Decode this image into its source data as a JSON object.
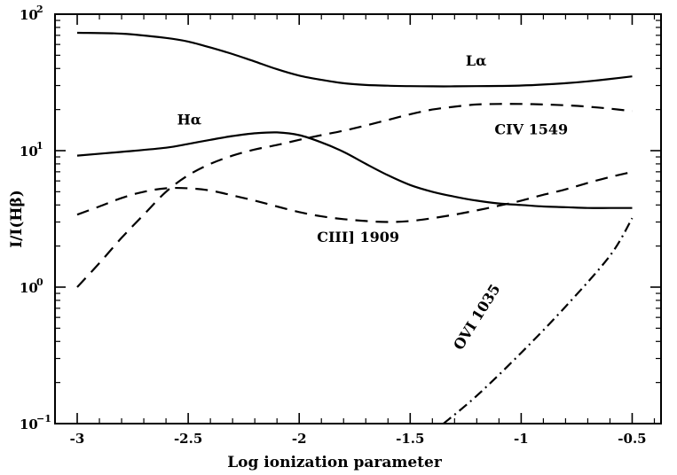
{
  "chart_data": {
    "type": "line",
    "title": "",
    "xlabel": "Log ionization parameter",
    "ylabel": "I/I(Hβ)",
    "xlim": [
      -3.1,
      -0.37
    ],
    "ylim": [
      0.1,
      100
    ],
    "y_scale": "log",
    "grid": false,
    "x_ticks": [
      {
        "value": -3,
        "label": "-3"
      },
      {
        "value": -2.5,
        "label": "-2.5"
      },
      {
        "value": -2,
        "label": "-2"
      },
      {
        "value": -1.5,
        "label": "-1.5"
      },
      {
        "value": -1,
        "label": "-1"
      },
      {
        "value": -0.5,
        "label": "-0.5"
      }
    ],
    "y_ticks": [
      {
        "value": 100,
        "base": "10",
        "exp": "2"
      },
      {
        "value": 10,
        "base": "10",
        "exp": "1"
      },
      {
        "value": 1,
        "base": "10",
        "exp": "0"
      },
      {
        "value": 0.1,
        "base": "10",
        "exp": "−1"
      }
    ],
    "series": [
      {
        "name": "Lα",
        "style": "solid",
        "label_at": {
          "x": -1.25,
          "y": 42
        },
        "x": [
          -3.0,
          -2.8,
          -2.6,
          -2.5,
          -2.4,
          -2.3,
          -2.2,
          -2.1,
          -2.0,
          -1.9,
          -1.8,
          -1.7,
          -1.6,
          -1.5,
          -1.4,
          -1.3,
          -1.2,
          -1.1,
          -1.0,
          -0.9,
          -0.8,
          -0.7,
          -0.6,
          -0.5
        ],
        "y": [
          73,
          72,
          67,
          63,
          57,
          51,
          45,
          39.5,
          35.5,
          33,
          31.2,
          30.3,
          29.9,
          29.7,
          29.6,
          29.6,
          29.7,
          29.8,
          30,
          30.5,
          31.2,
          32.2,
          33.5,
          35
        ]
      },
      {
        "name": "Hα",
        "style": "solid",
        "label_at": {
          "x": -2.55,
          "y": 15.5
        },
        "x": [
          -3.0,
          -2.8,
          -2.6,
          -2.5,
          -2.4,
          -2.3,
          -2.2,
          -2.1,
          -2.0,
          -1.9,
          -1.8,
          -1.7,
          -1.6,
          -1.5,
          -1.4,
          -1.3,
          -1.2,
          -1.1,
          -1.0,
          -0.9,
          -0.8,
          -0.7,
          -0.6,
          -0.5
        ],
        "y": [
          9.2,
          9.8,
          10.5,
          11.2,
          12.0,
          12.8,
          13.4,
          13.6,
          13.0,
          11.5,
          9.8,
          8.0,
          6.6,
          5.6,
          5.0,
          4.6,
          4.3,
          4.1,
          4.0,
          3.9,
          3.85,
          3.8,
          3.8,
          3.8
        ]
      },
      {
        "name": "CIV 1549",
        "style": "dash",
        "label_at": {
          "x": -1.12,
          "y": 13.2
        },
        "x": [
          -3.0,
          -2.9,
          -2.8,
          -2.7,
          -2.6,
          -2.5,
          -2.4,
          -2.3,
          -2.2,
          -2.1,
          -2.0,
          -1.9,
          -1.8,
          -1.7,
          -1.6,
          -1.5,
          -1.4,
          -1.3,
          -1.2,
          -1.1,
          -1.0,
          -0.9,
          -0.8,
          -0.7,
          -0.6,
          -0.5
        ],
        "y": [
          1.0,
          1.5,
          2.3,
          3.4,
          5.0,
          6.6,
          8.0,
          9.2,
          10.2,
          11.0,
          12.0,
          13.0,
          14.0,
          15.3,
          16.8,
          18.5,
          20.0,
          21.0,
          21.8,
          22.0,
          22.0,
          21.8,
          21.5,
          21.0,
          20.3,
          19.5
        ]
      },
      {
        "name": "CIII] 1909",
        "style": "dash",
        "label_at": {
          "x": -1.92,
          "y": 2.15
        },
        "x": [
          -3.0,
          -2.9,
          -2.8,
          -2.7,
          -2.6,
          -2.5,
          -2.4,
          -2.3,
          -2.2,
          -2.1,
          -2.0,
          -1.9,
          -1.8,
          -1.7,
          -1.6,
          -1.5,
          -1.4,
          -1.3,
          -1.2,
          -1.1,
          -1.0,
          -0.9,
          -0.8,
          -0.7,
          -0.6,
          -0.5
        ],
        "y": [
          3.4,
          3.9,
          4.5,
          5.0,
          5.3,
          5.3,
          5.1,
          4.7,
          4.3,
          3.9,
          3.55,
          3.3,
          3.15,
          3.05,
          3.0,
          3.05,
          3.2,
          3.4,
          3.65,
          3.95,
          4.3,
          4.75,
          5.2,
          5.8,
          6.4,
          7.0
        ]
      },
      {
        "name": "OVI 1035",
        "style": "dashdot",
        "label_at": {
          "x": -1.27,
          "y": 0.34
        },
        "x": [
          -1.35,
          -1.2,
          -1.0,
          -0.8,
          -0.6,
          -0.5
        ],
        "y": [
          0.1,
          0.16,
          0.33,
          0.72,
          1.7,
          3.2
        ]
      }
    ]
  }
}
